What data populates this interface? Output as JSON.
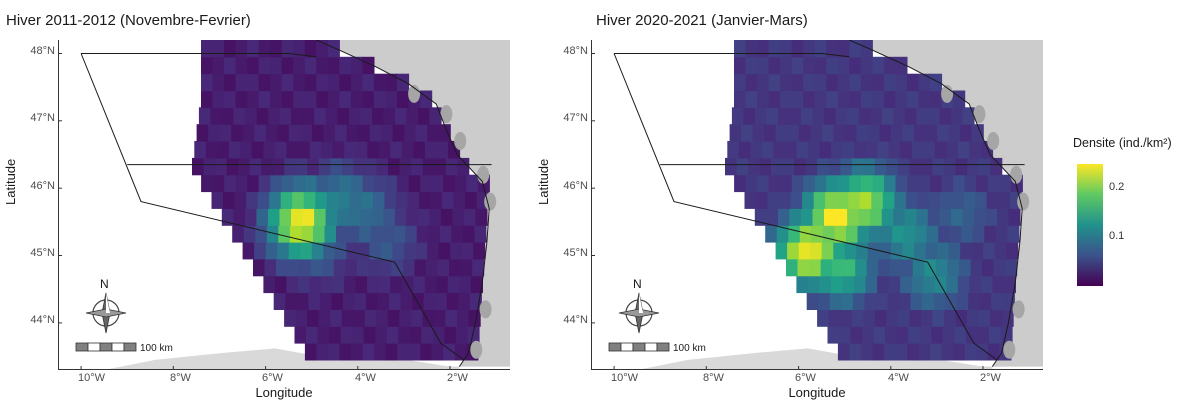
{
  "panels": [
    {
      "title": "Hiver 2011-2012 (Novembre-Fevrier)",
      "hotspots": [
        {
          "lon": -5.35,
          "lat": 45.38,
          "value": 0.24
        },
        {
          "lon": -4.5,
          "lat": 45.7,
          "value": 0.1
        },
        {
          "lon": -4.0,
          "lat": 45.55,
          "value": 0.085
        },
        {
          "lon": -5.0,
          "lat": 45.0,
          "value": 0.07
        },
        {
          "lon": -3.5,
          "lat": 45.1,
          "value": 0.06
        }
      ],
      "base_density": 0.02
    },
    {
      "title": "Hiver 2020-2021 (Janvier-Mars)",
      "hotspots": [
        {
          "lon": -5.3,
          "lat": 45.45,
          "value": 0.235
        },
        {
          "lon": -5.9,
          "lat": 44.95,
          "value": 0.23
        },
        {
          "lon": -4.7,
          "lat": 45.65,
          "value": 0.2
        },
        {
          "lon": -5.2,
          "lat": 44.7,
          "value": 0.15
        },
        {
          "lon": -3.8,
          "lat": 45.2,
          "value": 0.11
        },
        {
          "lon": -3.2,
          "lat": 44.6,
          "value": 0.1
        },
        {
          "lon": -2.6,
          "lat": 45.5,
          "value": 0.06
        }
      ],
      "base_density": 0.04
    }
  ],
  "axes": {
    "lat_ticks": [
      "48°N",
      "47°N",
      "46°N",
      "45°N",
      "44°N"
    ],
    "lat_values": [
      48,
      47,
      46,
      45,
      44
    ],
    "lon_ticks": [
      "10°W",
      "8°W",
      "6°W",
      "4°W",
      "2°W"
    ],
    "lon_values": [
      -10,
      -8,
      -6,
      -4,
      -2
    ],
    "lon_range": [
      -10.5,
      -0.7
    ],
    "lat_range": [
      43.3,
      48.2
    ],
    "xlabel": "Longitude",
    "ylabel": "Latitude"
  },
  "scale_bar": {
    "label": "100 km"
  },
  "north_arrow": {
    "label": "N"
  },
  "legend": {
    "title": "Densite (ind./km²)",
    "ticks": [
      "0.2",
      "0.1"
    ],
    "tick_values": [
      0.2,
      0.1
    ],
    "range": [
      0.0,
      0.25
    ],
    "palette": "viridis"
  },
  "colors": {
    "land": "#a6a6a6",
    "background_land": "#cccccc",
    "coast_outline": "#1a1a1a",
    "zone_line": "#1a1a1a"
  }
}
